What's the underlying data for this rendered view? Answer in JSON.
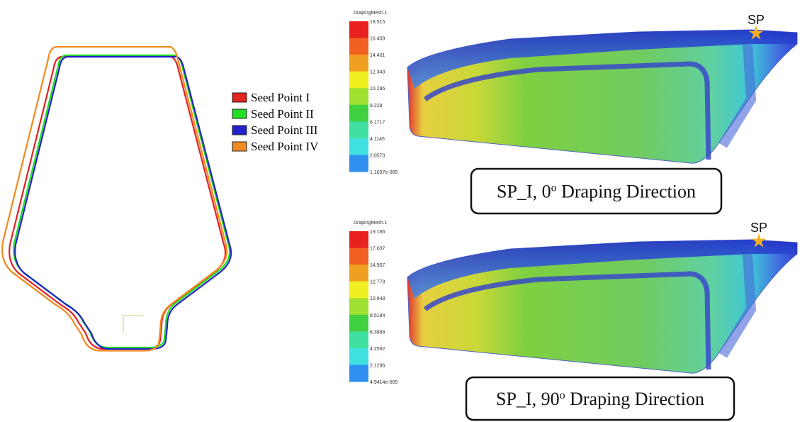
{
  "legend": [
    {
      "label": "Seed Point I",
      "color": "#e32222"
    },
    {
      "label": "Seed Point II",
      "color": "#22dd22"
    },
    {
      "label": "Seed Point III",
      "color": "#2222cc"
    },
    {
      "label": "Seed Point IV",
      "color": "#f08c22"
    }
  ],
  "panels": [
    {
      "colorbar": {
        "title": "DrapingMesh.1",
        "ticks": [
          "18.515",
          "16.458",
          "14.401",
          "12.343",
          "10.286",
          "8.229",
          "6.1717",
          "4.1145",
          "2.0573",
          "1.1037e-005"
        ]
      },
      "marker": "SP",
      "caption": {
        "prefix": "SP_I, 0",
        "superscript": "o",
        "suffix": " Draping Direction"
      }
    },
    {
      "colorbar": {
        "title": "DrapingMesh.1",
        "ticks": [
          "19.166",
          "17.037",
          "14.907",
          "12.778",
          "10.648",
          "8.5184",
          "6.3888",
          "4.2592",
          "2.1296",
          "4.9414e-005"
        ]
      },
      "marker": "SP",
      "caption": {
        "prefix": "SP_I, 90",
        "superscript": "o",
        "suffix": " Draping Direction"
      }
    }
  ]
}
